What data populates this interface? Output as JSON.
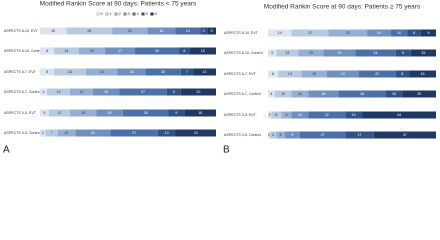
{
  "chart_data": [
    {
      "type": "bar",
      "orientation": "horizontal",
      "stacked": true,
      "panel_label": "A",
      "title": "Modified Rankin Score at 90 days: Patients < 75 years",
      "categories": [
        "ASPECTS 8-10, EVT",
        "ASPECTS 8-10, Control",
        "ASPECTS 6-7, EVT",
        "ASPECTS 6-7, Control",
        "ASPECTS 0-5, EVT",
        "ASPECTS 0-5, Control"
      ],
      "xlim": [
        0,
        100
      ],
      "legend": "top",
      "series": [
        {
          "name": "0",
          "color": "#dbe4f0",
          "values": [
            15,
            8,
            8,
            4,
            5,
            3
          ]
        },
        {
          "name": "1",
          "color": "#b8c9e2",
          "values": [
            26,
            14,
            18,
            13,
            12,
            7
          ]
        },
        {
          "name": "2",
          "color": "#95aed3",
          "values": [
            20,
            15,
            18,
            13,
            15,
            10
          ]
        },
        {
          "name": "3",
          "color": "#6f8fc1",
          "values": [
            16,
            17,
            16,
            15,
            15,
            20
          ]
        },
        {
          "name": "4",
          "color": "#4b6fa8",
          "values": [
            14,
            25,
            20,
            27,
            26,
            27
          ]
        },
        {
          "name": "5",
          "color": "#2f5288",
          "values": [
            4,
            6,
            7,
            8,
            9,
            10
          ]
        },
        {
          "name": "6",
          "color": "#1f3864",
          "values": [
            5,
            15,
            13,
            20,
            18,
            23
          ]
        }
      ]
    },
    {
      "type": "bar",
      "orientation": "horizontal",
      "stacked": true,
      "panel_label": "B",
      "title": "Modified Rankin Score at 90 days: Patients ≥ 75 years",
      "categories": [
        "ASPECTS 8-10, EVT",
        "ASPECTS 8-10, Control",
        "ASPECTS 6-7, EVT",
        "ASPECTS 6-7, Control",
        "ASPECTS 0-5, EVT",
        "ASPECTS 0-5, Control"
      ],
      "xlim": [
        0,
        100
      ],
      "series": [
        {
          "color": "#dbe4f0",
          "values": [
            14,
            5,
            6,
            4,
            2,
            1
          ]
        },
        {
          "color": "#b8c9e2",
          "values": [
            22,
            13,
            14,
            10,
            6,
            4
          ]
        },
        {
          "color": "#95aed3",
          "values": [
            23,
            15,
            15,
            10,
            6,
            5
          ]
        },
        {
          "color": "#6f8fc1",
          "values": [
            14,
            19,
            19,
            18,
            10,
            9
          ]
        },
        {
          "color": "#4b6fa8",
          "values": [
            10,
            24,
            22,
            28,
            22,
            27
          ]
        },
        {
          "color": "#2f5288",
          "values": [
            8,
            9,
            8,
            10,
            10,
            17
          ]
        },
        {
          "color": "#1f3864",
          "values": [
            9,
            15,
            16,
            20,
            44,
            37
          ]
        }
      ]
    }
  ]
}
